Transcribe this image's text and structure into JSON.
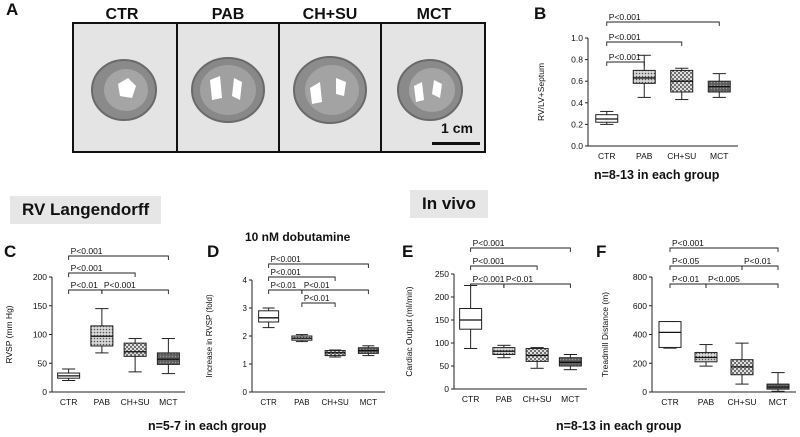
{
  "panel_letters": {
    "a": "A",
    "b": "B",
    "c": "C",
    "d": "D",
    "e": "E",
    "f": "F"
  },
  "photos": {
    "labels": [
      "CTR",
      "PAB",
      "CH+SU",
      "MCT"
    ],
    "scale_bar": "1 cm"
  },
  "sections": {
    "langendorff": "RV Langendorff",
    "in_vivo": "In vivo"
  },
  "notes": {
    "b_n": "n=8-13 in each group",
    "cd_n": "n=5-7 in each group",
    "ef_n": "n=8-13 in each group"
  },
  "d_subtitle": "10 nM dobutamine",
  "chart_data": [
    {
      "id": "b",
      "type": "box",
      "categories": [
        "CTR",
        "PAB",
        "CH+SU",
        "MCT"
      ],
      "ylabel": "RV/LV+Septum",
      "ylim": [
        0.0,
        1.0
      ],
      "yticks": [
        "0.0",
        "0.2",
        "0.4",
        "0.6",
        "0.8",
        "1.0"
      ],
      "boxes": [
        {
          "min": 0.2,
          "q1": 0.22,
          "median": 0.25,
          "q3": 0.29,
          "max": 0.32,
          "pattern": "white"
        },
        {
          "min": 0.45,
          "q1": 0.58,
          "median": 0.63,
          "q3": 0.7,
          "max": 0.84,
          "pattern": "dots"
        },
        {
          "min": 0.43,
          "q1": 0.5,
          "median": 0.6,
          "q3": 0.7,
          "max": 0.72,
          "pattern": "check"
        },
        {
          "min": 0.45,
          "q1": 0.5,
          "median": 0.55,
          "q3": 0.6,
          "max": 0.67,
          "pattern": "dark"
        }
      ],
      "brackets": [
        {
          "from": 0,
          "to": 3,
          "label": "P<0.001"
        },
        {
          "from": 0,
          "to": 2,
          "label": "P<0.001"
        },
        {
          "from": 0,
          "to": 1,
          "label": "P<0.001"
        }
      ]
    },
    {
      "id": "c",
      "type": "box",
      "categories": [
        "CTR",
        "PAB",
        "CH+SU",
        "MCT"
      ],
      "ylabel": "RVSP (mm Hg)",
      "ylim": [
        0,
        200
      ],
      "yticks": [
        "0",
        "50",
        "100",
        "150",
        "200"
      ],
      "boxes": [
        {
          "min": 20,
          "q1": 24,
          "median": 28,
          "q3": 33,
          "max": 40,
          "pattern": "white"
        },
        {
          "min": 68,
          "q1": 80,
          "median": 97,
          "q3": 115,
          "max": 145,
          "pattern": "dots"
        },
        {
          "min": 35,
          "q1": 62,
          "median": 70,
          "q3": 85,
          "max": 93,
          "pattern": "check"
        },
        {
          "min": 32,
          "q1": 48,
          "median": 57,
          "q3": 68,
          "max": 93,
          "pattern": "dark"
        }
      ],
      "brackets": [
        {
          "from": 0,
          "to": 3,
          "label": "P<0.001"
        },
        {
          "from": 0,
          "to": 2,
          "label": "P<0.001"
        },
        {
          "from": 0,
          "to": 1,
          "label": "P<0.01"
        },
        {
          "from": 1,
          "to": 3,
          "label": "P<0.001"
        }
      ]
    },
    {
      "id": "d",
      "type": "box",
      "categories": [
        "CTR",
        "PAB",
        "CH+SU",
        "MCT"
      ],
      "ylabel": "Increase in RVSP (fold)",
      "ylim": [
        0,
        4
      ],
      "yticks": [
        "0",
        "1",
        "2",
        "3",
        "4"
      ],
      "boxes": [
        {
          "min": 2.3,
          "q1": 2.5,
          "median": 2.65,
          "q3": 2.9,
          "max": 3.0,
          "pattern": "white"
        },
        {
          "min": 1.8,
          "q1": 1.85,
          "median": 1.92,
          "q3": 2.0,
          "max": 2.05,
          "pattern": "dots"
        },
        {
          "min": 1.25,
          "q1": 1.3,
          "median": 1.4,
          "q3": 1.48,
          "max": 1.5,
          "pattern": "check"
        },
        {
          "min": 1.3,
          "q1": 1.38,
          "median": 1.48,
          "q3": 1.58,
          "max": 1.65,
          "pattern": "dark"
        }
      ],
      "brackets": [
        {
          "from": 0,
          "to": 3,
          "label": "P<0.001"
        },
        {
          "from": 0,
          "to": 2,
          "label": "P<0.001"
        },
        {
          "from": 0,
          "to": 1,
          "label": "P<0.01"
        },
        {
          "from": 1,
          "to": 3,
          "label": "P<0.01"
        },
        {
          "from": 1,
          "to": 2,
          "label": "P<0.01"
        }
      ]
    },
    {
      "id": "e",
      "type": "box",
      "categories": [
        "CTR",
        "PAB",
        "CH+SU",
        "MCT"
      ],
      "ylabel": "Cardiac Output (ml/min)",
      "ylim": [
        0,
        250
      ],
      "yticks": [
        "0",
        "50",
        "100",
        "150",
        "200",
        "250"
      ],
      "boxes": [
        {
          "min": 88,
          "q1": 130,
          "median": 150,
          "q3": 175,
          "max": 225,
          "pattern": "white"
        },
        {
          "min": 68,
          "q1": 75,
          "median": 82,
          "q3": 90,
          "max": 95,
          "pattern": "dots"
        },
        {
          "min": 45,
          "q1": 60,
          "median": 73,
          "q3": 88,
          "max": 90,
          "pattern": "check"
        },
        {
          "min": 42,
          "q1": 50,
          "median": 58,
          "q3": 68,
          "max": 75,
          "pattern": "dark"
        }
      ],
      "brackets": [
        {
          "from": 0,
          "to": 3,
          "label": "P<0.001"
        },
        {
          "from": 0,
          "to": 2,
          "label": "P<0.001"
        },
        {
          "from": 0,
          "to": 1,
          "label": "P<0.001"
        },
        {
          "from": 1,
          "to": 3,
          "label": "P<0.01"
        }
      ]
    },
    {
      "id": "f",
      "type": "box",
      "categories": [
        "CTR",
        "PAB",
        "CH+SU",
        "MCT"
      ],
      "ylabel": "Treadmill Distance (m)",
      "ylim": [
        0,
        800
      ],
      "yticks": [
        "0",
        "200",
        "400",
        "600",
        "800"
      ],
      "boxes": [
        {
          "min": 305,
          "q1": 310,
          "median": 415,
          "q3": 490,
          "max": 490,
          "pattern": "white"
        },
        {
          "min": 180,
          "q1": 210,
          "median": 240,
          "q3": 275,
          "max": 330,
          "pattern": "dots"
        },
        {
          "min": 55,
          "q1": 120,
          "median": 175,
          "q3": 225,
          "max": 340,
          "pattern": "check"
        },
        {
          "min": 5,
          "q1": 20,
          "median": 35,
          "q3": 55,
          "max": 135,
          "pattern": "dark"
        }
      ],
      "brackets": [
        {
          "from": 0,
          "to": 3,
          "label": "P<0.001"
        },
        {
          "from": 0,
          "to": 2,
          "label": "P<0.05"
        },
        {
          "from": 2,
          "to": 3,
          "label": "P<0.01"
        },
        {
          "from": 0,
          "to": 1,
          "label": "P<0.01"
        },
        {
          "from": 1,
          "to": 3,
          "label": "P<0.005"
        }
      ]
    }
  ]
}
